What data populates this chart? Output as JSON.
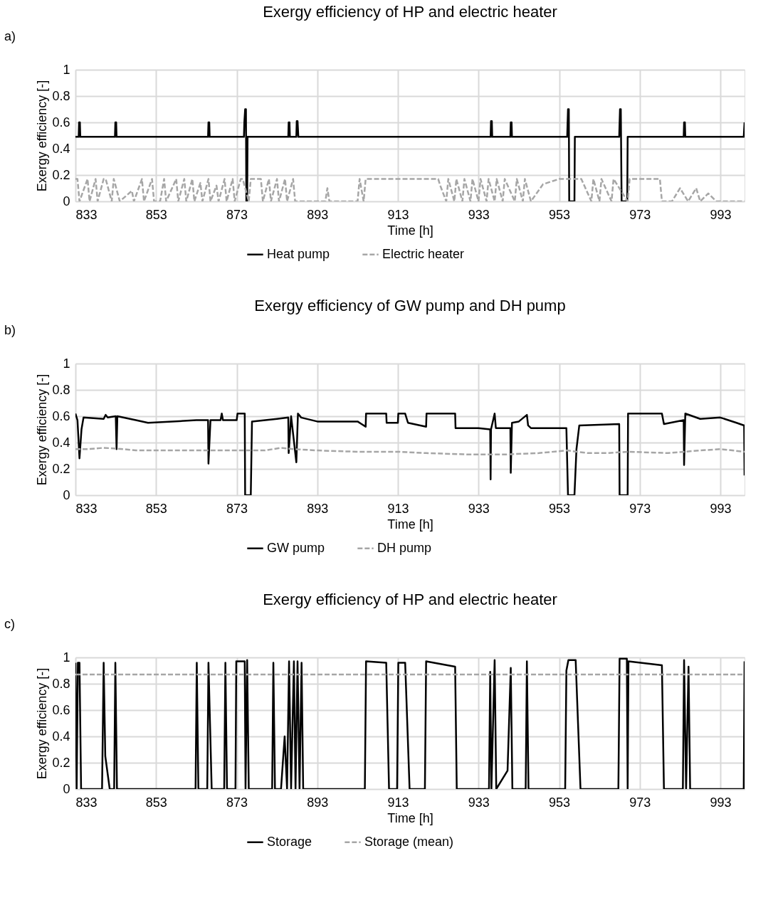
{
  "chart_data": [
    {
      "type": "line",
      "title": "Exergy efficiency of HP and electric heater",
      "xlabel": "Time [h]",
      "ylabel": "Exergy efficiency [-]",
      "annotations": [
        "a)"
      ],
      "xlim": [
        833,
        999
      ],
      "xticks": [
        833,
        853,
        873,
        893,
        913,
        933,
        953,
        973,
        993
      ],
      "ylim": [
        0,
        1
      ],
      "yticks": [
        0,
        0.2,
        0.4,
        0.6,
        0.8,
        1
      ],
      "grid": true,
      "legend": "bottom",
      "series": [
        {
          "name": "Heat pump",
          "color": "#000000",
          "line_style": "solid",
          "x": [
            833,
            833.8,
            833.9,
            834.1,
            834.2,
            842.8,
            842.9,
            843.1,
            843.2,
            865.9,
            866.0,
            866.2,
            866.3,
            874.8,
            874.9,
            875.1,
            875.3,
            875.4,
            875.6,
            875.7,
            885.8,
            885.9,
            886.1,
            886.2,
            887.8,
            887.9,
            888.1,
            888.3,
            936.0,
            936.1,
            936.3,
            936.4,
            940.9,
            941.0,
            941.2,
            941.3,
            955.0,
            955.2,
            955.4,
            955.5,
            956.8,
            956.9,
            967.9,
            968.1,
            968.3,
            968.5,
            969.9,
            970.0,
            983.9,
            984.0,
            984.2,
            984.3,
            998.8,
            999
          ],
          "values": [
            0.49,
            0.49,
            0.6,
            0.6,
            0.49,
            0.49,
            0.6,
            0.6,
            0.49,
            0.49,
            0.6,
            0.6,
            0.49,
            0.49,
            0.6,
            0.7,
            0.7,
            0,
            0,
            0.49,
            0.49,
            0.6,
            0.6,
            0.49,
            0.49,
            0.61,
            0.61,
            0.49,
            0.49,
            0.61,
            0.61,
            0.49,
            0.49,
            0.6,
            0.6,
            0.49,
            0.49,
            0.7,
            0.7,
            0,
            0,
            0.49,
            0.49,
            0.7,
            0.7,
            0,
            0,
            0.49,
            0.49,
            0.6,
            0.6,
            0.49,
            0.49,
            0.6
          ]
        },
        {
          "name": "Electric heater",
          "color": "#a6a6a6",
          "line_style": "dashed",
          "x": [
            833,
            833.5,
            834,
            836,
            836.5,
            838,
            838.5,
            840,
            840.5,
            842,
            842.5,
            844,
            847,
            847.5,
            849.5,
            850,
            852,
            852.5,
            854,
            855,
            855.5,
            858,
            858.5,
            860,
            860.5,
            862,
            862.5,
            864,
            864.5,
            866,
            866.5,
            868,
            868.5,
            870,
            870.5,
            872,
            872.5,
            874,
            874.5,
            876,
            876.5,
            879,
            879.5,
            881,
            881.5,
            883,
            883.5,
            885,
            885.5,
            887,
            887.5,
            889,
            895,
            895.5,
            896,
            903,
            903.5,
            904.5,
            905,
            923,
            923.5,
            925,
            925.5,
            927,
            927.5,
            929,
            929.5,
            931,
            931.5,
            933,
            933.5,
            935,
            935.5,
            937,
            937.5,
            939,
            939.5,
            942,
            942.5,
            944,
            944.5,
            946,
            949,
            953,
            958,
            958.5,
            961,
            961.5,
            963,
            963.5,
            966,
            966.5,
            970,
            970.5,
            978,
            978.5,
            981,
            983,
            985,
            987,
            988,
            990,
            992,
            993,
            999
          ],
          "values": [
            0.17,
            0.17,
            0,
            0.17,
            0,
            0.17,
            0,
            0.17,
            0.17,
            0,
            0.17,
            0,
            0.08,
            0,
            0.17,
            0,
            0.17,
            0,
            0,
            0.17,
            0,
            0.17,
            0,
            0.17,
            0,
            0.17,
            0,
            0.14,
            0,
            0.17,
            0,
            0.12,
            0,
            0.17,
            0,
            0.17,
            0,
            0.17,
            0.17,
            0,
            0.17,
            0.17,
            0,
            0.17,
            0,
            0.17,
            0,
            0.17,
            0,
            0.17,
            0,
            0,
            0,
            0.1,
            0,
            0,
            0.17,
            0,
            0.17,
            0.17,
            0.12,
            0,
            0.17,
            0,
            0.17,
            0,
            0.17,
            0,
            0.17,
            0,
            0.17,
            0,
            0.17,
            0,
            0.17,
            0,
            0.17,
            0,
            0.17,
            0,
            0.17,
            0,
            0.13,
            0.17,
            0.17,
            0.17,
            0,
            0.17,
            0,
            0.17,
            0,
            0.17,
            0,
            0.17,
            0.17,
            0,
            0,
            0.1,
            0,
            0.1,
            0,
            0.06,
            0,
            0,
            0
          ]
        }
      ]
    },
    {
      "type": "line",
      "title": "Exergy efficiency of GW pump and DH pump",
      "xlabel": "Time [h]",
      "ylabel": "Exergy efficiency [-]",
      "annotations": [
        "b)"
      ],
      "xlim": [
        833,
        999
      ],
      "xticks": [
        833,
        853,
        873,
        893,
        913,
        933,
        953,
        973,
        993
      ],
      "ylim": [
        0,
        1
      ],
      "yticks": [
        0,
        0.2,
        0.4,
        0.6,
        0.8,
        1
      ],
      "grid": true,
      "legend": "bottom",
      "series": [
        {
          "name": "GW pump",
          "color": "#000000",
          "line_style": "solid",
          "x": [
            833,
            833.5,
            834,
            834.5,
            835,
            840,
            840.5,
            841,
            843,
            843.2,
            843.4,
            848,
            851,
            857,
            863,
            865.9,
            866.0,
            866.5,
            869,
            869.3,
            869.6,
            873,
            873.2,
            875.0,
            875.1,
            876.5,
            876.8,
            883,
            885.8,
            885.9,
            886.5,
            887.8,
            888.2,
            889,
            893,
            903,
            905,
            905.1,
            910.1,
            910.2,
            913.0,
            913.1,
            914.8,
            915.5,
            920.0,
            920.1,
            927.2,
            927.3,
            933,
            935.9,
            936.0,
            936.1,
            937.0,
            937.3,
            940.9,
            941.0,
            941.3,
            943,
            945.0,
            945.3,
            946,
            954.8,
            955.2,
            956.8,
            957.3,
            958,
            967.9,
            968.0,
            970.0,
            970.1,
            978.5,
            979,
            983.9,
            984.0,
            984.3,
            988,
            993,
            997,
            998.9,
            999
          ],
          "values": [
            0.62,
            0.57,
            0.28,
            0.5,
            0.59,
            0.58,
            0.61,
            0.59,
            0.6,
            0.35,
            0.6,
            0.57,
            0.55,
            0.56,
            0.57,
            0.57,
            0.24,
            0.57,
            0.57,
            0.62,
            0.57,
            0.57,
            0.62,
            0.62,
            0,
            0,
            0.56,
            0.58,
            0.59,
            0.32,
            0.6,
            0.25,
            0.62,
            0.59,
            0.56,
            0.56,
            0.52,
            0.62,
            0.62,
            0.55,
            0.55,
            0.62,
            0.62,
            0.55,
            0.52,
            0.62,
            0.62,
            0.51,
            0.51,
            0.5,
            0.12,
            0.5,
            0.62,
            0.51,
            0.51,
            0.17,
            0.55,
            0.56,
            0.61,
            0.53,
            0.51,
            0.51,
            0,
            0,
            0.35,
            0.53,
            0.54,
            0,
            0,
            0.62,
            0.62,
            0.54,
            0.57,
            0.23,
            0.62,
            0.58,
            0.59,
            0.55,
            0.53,
            0.15
          ]
        },
        {
          "name": "DH pump",
          "color": "#a6a6a6",
          "line_style": "dashed",
          "x": [
            833,
            836,
            840,
            845,
            848,
            855,
            865,
            875,
            880,
            884,
            887,
            893,
            903,
            913,
            920,
            930,
            940,
            948,
            955,
            960,
            965,
            970,
            980,
            988,
            993,
            999
          ],
          "values": [
            0.35,
            0.35,
            0.36,
            0.35,
            0.34,
            0.34,
            0.34,
            0.34,
            0.34,
            0.36,
            0.35,
            0.34,
            0.33,
            0.33,
            0.32,
            0.31,
            0.31,
            0.32,
            0.34,
            0.32,
            0.32,
            0.33,
            0.32,
            0.34,
            0.35,
            0.33
          ]
        }
      ]
    },
    {
      "type": "line",
      "title": "Exergy efficiency of HP and electric heater",
      "xlabel": "Time [h]",
      "ylabel": "Exergy efficiency [-]",
      "annotations": [
        "c)"
      ],
      "xlim": [
        833,
        999
      ],
      "xticks": [
        833,
        853,
        873,
        893,
        913,
        933,
        953,
        973,
        993
      ],
      "ylim": [
        0,
        1
      ],
      "yticks": [
        0,
        0.2,
        0.4,
        0.6,
        0.8,
        1
      ],
      "grid": true,
      "legend": "bottom",
      "series": [
        {
          "name": "Storage",
          "color": "#000000",
          "line_style": "solid",
          "x": [
            833,
            833.3,
            833.6,
            834,
            834.4,
            835,
            839.6,
            840.0,
            840.4,
            841.5,
            842.6,
            842.9,
            843.3,
            862.8,
            863.1,
            863.5,
            865.7,
            866.0,
            866.8,
            869.9,
            870.2,
            870.6,
            872.7,
            872.9,
            875.0,
            875.2,
            875.6,
            876.0,
            881.8,
            882.1,
            882.5,
            884.0,
            884.9,
            885.5,
            886.0,
            886.5,
            887.2,
            887.6,
            888.1,
            888.6,
            889.1,
            889.5,
            904.8,
            905.1,
            910.1,
            910.8,
            912.8,
            913.1,
            914.8,
            915.9,
            919.7,
            920.0,
            927.2,
            927.6,
            935.6,
            935.9,
            936.2,
            937.0,
            937.4,
            940.2,
            941.0,
            941.4,
            944.7,
            945.0,
            945.4,
            954.5,
            954.8,
            955.3,
            957.1,
            958.3,
            967.7,
            968.0,
            969.8,
            970.0,
            970.2,
            978.5,
            979.0,
            983.7,
            984.0,
            984.5,
            985.1,
            985.5,
            998.8,
            999
          ],
          "values": [
            0.96,
            0,
            0.96,
            0.96,
            0,
            0,
            0,
            0.96,
            0.25,
            0,
            0,
            0.96,
            0,
            0,
            0.96,
            0,
            0,
            0.96,
            0,
            0,
            0.96,
            0,
            0,
            0.97,
            0.97,
            0,
            0.98,
            0,
            0,
            0.96,
            0,
            0,
            0.4,
            0,
            0.97,
            0,
            0.97,
            0,
            0.97,
            0,
            0.96,
            0,
            0,
            0.97,
            0.96,
            0,
            0,
            0.96,
            0.96,
            0,
            0,
            0.97,
            0.93,
            0,
            0,
            0.89,
            0,
            0.98,
            0,
            0.14,
            0.92,
            0,
            0,
            0.97,
            0,
            0,
            0.9,
            0.98,
            0.98,
            0,
            0,
            0.99,
            0.99,
            0,
            0.97,
            0.94,
            0,
            0,
            0.98,
            0,
            0.93,
            0,
            0,
            0.97
          ]
        },
        {
          "name": "Storage (mean)",
          "color": "#a6a6a6",
          "line_style": "dashed",
          "x": [
            833,
            999
          ],
          "values": [
            0.87,
            0.87
          ]
        }
      ]
    }
  ]
}
